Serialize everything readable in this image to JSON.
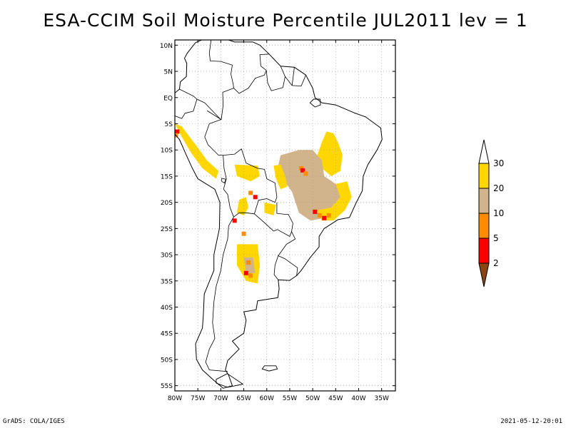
{
  "title": "ESA-CCIM Soil Moisture Percentile JUL2011 lev = 1",
  "footer": {
    "left": "GrADS: COLA/IGES",
    "right": "2021-05-12-20:01"
  },
  "map": {
    "region": "South America",
    "projection": "lat-lon",
    "lon_range": [
      -80,
      -32
    ],
    "lat_range": [
      -56,
      11
    ],
    "grid_lines": "dotted",
    "lat_ticks": [
      {
        "value": 10,
        "label": "10N"
      },
      {
        "value": 5,
        "label": "5N"
      },
      {
        "value": 0,
        "label": "EQ"
      },
      {
        "value": -5,
        "label": "5S"
      },
      {
        "value": -10,
        "label": "10S"
      },
      {
        "value": -15,
        "label": "15S"
      },
      {
        "value": -20,
        "label": "20S"
      },
      {
        "value": -25,
        "label": "25S"
      },
      {
        "value": -30,
        "label": "30S"
      },
      {
        "value": -35,
        "label": "35S"
      },
      {
        "value": -40,
        "label": "40S"
      },
      {
        "value": -45,
        "label": "45S"
      },
      {
        "value": -50,
        "label": "50S"
      },
      {
        "value": -55,
        "label": "55S"
      }
    ],
    "lon_ticks": [
      {
        "value": -80,
        "label": "80W"
      },
      {
        "value": -75,
        "label": "75W"
      },
      {
        "value": -70,
        "label": "70W"
      },
      {
        "value": -65,
        "label": "65W"
      },
      {
        "value": -60,
        "label": "60W"
      },
      {
        "value": -55,
        "label": "55W"
      },
      {
        "value": -50,
        "label": "50W"
      },
      {
        "value": -45,
        "label": "45W"
      },
      {
        "value": -40,
        "label": "40W"
      },
      {
        "value": -35,
        "label": "35W"
      }
    ],
    "colors": {
      "lt2": "#8b4513",
      "2to5": "#ff0000",
      "5to10": "#ff8c00",
      "10to20": "#d2b48c",
      "20to30": "#ffd700",
      "gt30": "#ffffff"
    },
    "regions": [
      {
        "name": "ne-brazil-dry",
        "class": "20to30",
        "points": [
          [
            -47,
            -6.5
          ],
          [
            -45.5,
            -6.8
          ],
          [
            -44.5,
            -8.5
          ],
          [
            -43.5,
            -11
          ],
          [
            -44,
            -14
          ],
          [
            -46,
            -15
          ],
          [
            -48,
            -13.5
          ],
          [
            -49,
            -11
          ],
          [
            -48,
            -8.5
          ]
        ]
      },
      {
        "name": "central-brazil-dry",
        "class": "10to20",
        "points": [
          [
            -57,
            -11
          ],
          [
            -53,
            -10
          ],
          [
            -50,
            -10
          ],
          [
            -48,
            -12
          ],
          [
            -47.5,
            -15
          ],
          [
            -45,
            -16.5
          ],
          [
            -43.5,
            -18.5
          ],
          [
            -45,
            -21.5
          ],
          [
            -47.5,
            -23
          ],
          [
            -50.5,
            -23.5
          ],
          [
            -53,
            -22
          ],
          [
            -54.5,
            -18
          ],
          [
            -56.5,
            -15.5
          ],
          [
            -57.5,
            -13
          ]
        ]
      },
      {
        "name": "se-brazil-dry",
        "class": "20to30",
        "points": [
          [
            -45,
            -16.5
          ],
          [
            -42.5,
            -16
          ],
          [
            -41.5,
            -19
          ],
          [
            -43,
            -21.5
          ],
          [
            -45.5,
            -23.5
          ],
          [
            -48,
            -23.5
          ],
          [
            -49,
            -21.5
          ],
          [
            -46,
            -21
          ],
          [
            -44,
            -19
          ]
        ]
      },
      {
        "name": "mato-grosso-edge",
        "class": "20to30",
        "points": [
          [
            -58.5,
            -13
          ],
          [
            -57,
            -12.8
          ],
          [
            -56,
            -15
          ],
          [
            -55.5,
            -17
          ],
          [
            -57,
            -17.5
          ],
          [
            -58,
            -15.5
          ]
        ]
      },
      {
        "name": "bolivia-dry",
        "class": "20to30",
        "points": [
          [
            -67,
            -12.8
          ],
          [
            -62,
            -13
          ],
          [
            -61.5,
            -15
          ],
          [
            -63.5,
            -16
          ],
          [
            -66.5,
            -15
          ]
        ]
      },
      {
        "name": "peru-coast-dry",
        "class": "20to30",
        "points": [
          [
            -80,
            -5
          ],
          [
            -78.5,
            -7.5
          ],
          [
            -76.5,
            -10.5
          ],
          [
            -74,
            -13.5
          ],
          [
            -71,
            -15.5
          ],
          [
            -70.5,
            -14
          ],
          [
            -73,
            -12
          ],
          [
            -75.5,
            -9
          ],
          [
            -78.5,
            -5.5
          ]
        ]
      },
      {
        "name": "chaco-dry",
        "class": "20to30",
        "points": [
          [
            -66,
            -19.5
          ],
          [
            -64.5,
            -19
          ],
          [
            -64,
            -21
          ],
          [
            -65,
            -22.5
          ],
          [
            -66.5,
            -22
          ]
        ]
      },
      {
        "name": "cordoba-dry",
        "class": "20to30",
        "points": [
          [
            -66.5,
            -28
          ],
          [
            -62,
            -28
          ],
          [
            -61.5,
            -32
          ],
          [
            -62,
            -35.5
          ],
          [
            -64.5,
            -35
          ],
          [
            -66.5,
            -32
          ]
        ]
      },
      {
        "name": "cordoba-core",
        "class": "10to20",
        "points": [
          [
            -65,
            -30.5
          ],
          [
            -63,
            -30.5
          ],
          [
            -62.5,
            -33.5
          ],
          [
            -64.5,
            -33.5
          ]
        ]
      },
      {
        "name": "paraguay-dry",
        "class": "20to30",
        "points": [
          [
            -60.5,
            -20
          ],
          [
            -58,
            -20.5
          ],
          [
            -58.5,
            -22.5
          ],
          [
            -60.5,
            -22
          ]
        ]
      }
    ],
    "hotspots": [
      {
        "class": "5to10",
        "lon": -52.5,
        "lat": -13.5
      },
      {
        "class": "2to5",
        "lon": -52.2,
        "lat": -13.9
      },
      {
        "class": "5to10",
        "lon": -51.5,
        "lat": -14.5
      },
      {
        "class": "2to5",
        "lon": -49.5,
        "lat": -21.8
      },
      {
        "class": "5to10",
        "lon": -48.5,
        "lat": -22.5
      },
      {
        "class": "2to5",
        "lon": -47.5,
        "lat": -23
      },
      {
        "class": "5to10",
        "lon": -46.5,
        "lat": -22.5
      },
      {
        "class": "2to5",
        "lon": -62.5,
        "lat": -19
      },
      {
        "class": "5to10",
        "lon": -63.5,
        "lat": -18.2
      },
      {
        "class": "2to5",
        "lon": -79.5,
        "lat": -6.5
      },
      {
        "class": "5to10",
        "lon": -79.8,
        "lat": -7.2
      },
      {
        "class": "5to10",
        "lon": -64,
        "lat": -31.5
      },
      {
        "class": "2to5",
        "lon": -64.5,
        "lat": -33.5
      },
      {
        "class": "5to10",
        "lon": -63.5,
        "lat": -34
      },
      {
        "class": "2to5",
        "lon": -67,
        "lat": -23.5
      },
      {
        "class": "5to10",
        "lon": -65,
        "lat": -26
      }
    ],
    "coastline": [
      [
        -77.3,
        8.5
      ],
      [
        -75.5,
        10.5
      ],
      [
        -72,
        11.8
      ],
      [
        -70,
        11.5
      ],
      [
        -67,
        10.6
      ],
      [
        -63,
        10.6
      ],
      [
        -61.5,
        10
      ],
      [
        -59.5,
        8.3
      ],
      [
        -57,
        6
      ],
      [
        -54,
        5.8
      ],
      [
        -51.5,
        4.3
      ],
      [
        -50,
        1.8
      ],
      [
        -49.5,
        0
      ],
      [
        -48,
        -1
      ],
      [
        -45,
        -1.4
      ],
      [
        -41,
        -2.9
      ],
      [
        -38.5,
        -3.7
      ],
      [
        -35.2,
        -5.8
      ],
      [
        -34.9,
        -8
      ],
      [
        -36,
        -10
      ],
      [
        -38,
        -12.8
      ],
      [
        -39,
        -15
      ],
      [
        -39.2,
        -17.8
      ],
      [
        -40.5,
        -20
      ],
      [
        -42,
        -22.9
      ],
      [
        -44.5,
        -23.3
      ],
      [
        -47.5,
        -25
      ],
      [
        -48.6,
        -26.5
      ],
      [
        -48.6,
        -28.5
      ],
      [
        -50.5,
        -30.5
      ],
      [
        -52.5,
        -33
      ],
      [
        -53.5,
        -34
      ],
      [
        -55,
        -34.9
      ],
      [
        -57.5,
        -34.8
      ],
      [
        -57.3,
        -36.5
      ],
      [
        -57.6,
        -38.2
      ],
      [
        -62,
        -38.8
      ],
      [
        -62.3,
        -40.5
      ],
      [
        -65,
        -40.9
      ],
      [
        -64.5,
        -42.5
      ],
      [
        -65,
        -45
      ],
      [
        -67.5,
        -46.5
      ],
      [
        -66,
        -48
      ],
      [
        -68.5,
        -50.2
      ],
      [
        -69,
        -52
      ],
      [
        -68.3,
        -53
      ],
      [
        -67.5,
        -55
      ],
      [
        -69.5,
        -55.5
      ],
      [
        -71.5,
        -54
      ],
      [
        -74,
        -52
      ],
      [
        -75.3,
        -50
      ],
      [
        -75.5,
        -47
      ],
      [
        -74,
        -44
      ],
      [
        -73.8,
        -41.5
      ],
      [
        -73.6,
        -37.5
      ],
      [
        -71.5,
        -33
      ],
      [
        -71.5,
        -30
      ],
      [
        -70.3,
        -25
      ],
      [
        -70.2,
        -20
      ],
      [
        -71.3,
        -17.5
      ],
      [
        -75,
        -15.5
      ],
      [
        -76.2,
        -13.5
      ],
      [
        -77.5,
        -11
      ],
      [
        -79,
        -8
      ],
      [
        -81,
        -6
      ],
      [
        -81.2,
        -4.2
      ],
      [
        -80,
        -2.5
      ],
      [
        -80.8,
        -1
      ],
      [
        -80.1,
        0.8
      ],
      [
        -79,
        1.6
      ],
      [
        -78.8,
        3
      ],
      [
        -77.5,
        4
      ],
      [
        -77.4,
        6.5
      ],
      [
        -77.9,
        7.5
      ],
      [
        -77.3,
        8.5
      ]
    ],
    "borders": [
      [
        [
          -79,
          1.6
        ],
        [
          -76,
          0.3
        ],
        [
          -75.2,
          -0.3
        ],
        [
          -73.5,
          -1
        ],
        [
          -70,
          -4.2
        ]
      ],
      [
        [
          -80.3,
          -3.4
        ],
        [
          -78.5,
          -4
        ],
        [
          -77.8,
          -3
        ],
        [
          -76,
          -2.6
        ],
        [
          -75.2,
          -0.3
        ]
      ],
      [
        [
          -70,
          -4.2
        ],
        [
          -72.5,
          -5
        ],
        [
          -73.5,
          -7.5
        ],
        [
          -72.8,
          -9
        ],
        [
          -70.5,
          -11
        ],
        [
          -69.5,
          -11
        ],
        [
          -69.3,
          -13.5
        ],
        [
          -68.8,
          -15.5
        ],
        [
          -69.4,
          -17.5
        ]
      ],
      [
        [
          -69.4,
          -17.5
        ],
        [
          -68.5,
          -18.5
        ],
        [
          -68,
          -21
        ],
        [
          -67.2,
          -22.8
        ],
        [
          -68.3,
          -24.5
        ],
        [
          -68.5,
          -27
        ],
        [
          -69.5,
          -30
        ],
        [
          -70,
          -33
        ],
        [
          -71,
          -36
        ],
        [
          -71.5,
          -39
        ],
        [
          -71.8,
          -43
        ],
        [
          -71.3,
          -46
        ],
        [
          -72.5,
          -48
        ],
        [
          -73.3,
          -50.5
        ],
        [
          -72.5,
          -52
        ],
        [
          -68.5,
          -52.3
        ]
      ],
      [
        [
          -69.5,
          -11
        ],
        [
          -67,
          -10.8
        ],
        [
          -65.5,
          -9.8
        ],
        [
          -64.5,
          -12.5
        ],
        [
          -62,
          -13.5
        ],
        [
          -60.5,
          -13.7
        ],
        [
          -60,
          -15.5
        ],
        [
          -58.2,
          -16.3
        ],
        [
          -57.8,
          -19
        ]
      ],
      [
        [
          -57.8,
          -19
        ],
        [
          -58.2,
          -20
        ],
        [
          -60,
          -19.3
        ],
        [
          -61.8,
          -19.6
        ],
        [
          -62.7,
          -22.2
        ],
        [
          -64.5,
          -22
        ],
        [
          -66,
          -22
        ],
        [
          -67.2,
          -22.8
        ]
      ],
      [
        [
          -62.7,
          -22.2
        ],
        [
          -61,
          -23.5
        ],
        [
          -58.5,
          -25.5
        ],
        [
          -57.7,
          -25.2
        ],
        [
          -55,
          -26.5
        ],
        [
          -54.6,
          -25.6
        ],
        [
          -54.3,
          -24
        ],
        [
          -55.3,
          -22.3
        ],
        [
          -56,
          -22.3
        ],
        [
          -57.8,
          -22.1
        ],
        [
          -57.8,
          -20
        ]
      ],
      [
        [
          -54.6,
          -25.6
        ],
        [
          -53.8,
          -27
        ],
        [
          -55.7,
          -28
        ],
        [
          -57.5,
          -30.2
        ],
        [
          -56,
          -30.8
        ],
        [
          -53.3,
          -32.5
        ],
        [
          -53.5,
          -34
        ]
      ],
      [
        [
          -57.5,
          -30.2
        ],
        [
          -58.2,
          -32
        ],
        [
          -58.4,
          -33.8
        ],
        [
          -57.5,
          -34.8
        ]
      ],
      [
        [
          -73,
          -2.5
        ],
        [
          -69.9,
          -4.2
        ],
        [
          -69.5,
          -1.5
        ],
        [
          -69.6,
          1
        ],
        [
          -67.2,
          1.8
        ],
        [
          -66,
          0.8
        ],
        [
          -64,
          1.8
        ],
        [
          -62.5,
          3.7
        ],
        [
          -60.5,
          4.3
        ],
        [
          -60.1,
          5.2
        ],
        [
          -61.3,
          6
        ]
      ],
      [
        [
          -72,
          11.8
        ],
        [
          -72.5,
          8.5
        ],
        [
          -72.3,
          7
        ],
        [
          -70,
          6.9
        ],
        [
          -67.5,
          6.2
        ],
        [
          -67.8,
          4.5
        ],
        [
          -67.3,
          2.5
        ],
        [
          -67.2,
          1.8
        ]
      ],
      [
        [
          -61.3,
          6
        ],
        [
          -61.5,
          8.2
        ],
        [
          -59.5,
          8.3
        ]
      ],
      [
        [
          -60.1,
          5.2
        ],
        [
          -59.8,
          2.8
        ],
        [
          -59,
          1.3
        ],
        [
          -56.5,
          1.9
        ],
        [
          -56,
          4
        ],
        [
          -57,
          6
        ]
      ],
      [
        [
          -56,
          4
        ],
        [
          -54.5,
          2.3
        ],
        [
          -52.5,
          2.2
        ],
        [
          -51.5,
          4.3
        ]
      ],
      [
        [
          -54,
          5.8
        ],
        [
          -54.5,
          2.3
        ]
      ]
    ],
    "islands": [
      [
        [
          -71,
          -53.8
        ],
        [
          -68.6,
          -52.7
        ],
        [
          -65.2,
          -54.7
        ],
        [
          -68.5,
          -55.3
        ],
        [
          -71,
          -54.5
        ]
      ],
      [
        [
          -60.5,
          -51.2
        ],
        [
          -58,
          -51.2
        ],
        [
          -57.7,
          -51.8
        ],
        [
          -59.5,
          -52.2
        ],
        [
          -61,
          -51.8
        ]
      ],
      [
        [
          -49.8,
          -0.3
        ],
        [
          -48.4,
          -0.3
        ],
        [
          -48.3,
          -1.4
        ],
        [
          -49.5,
          -1.8
        ],
        [
          -50.6,
          -1
        ]
      ]
    ],
    "lakes": [
      [
        [
          -69.8,
          -15.4
        ],
        [
          -68.9,
          -15.6
        ],
        [
          -69.2,
          -16.3
        ],
        [
          -69.8,
          -16
        ]
      ]
    ]
  },
  "legend": {
    "top_label": "30",
    "bottom_label": "2",
    "boxes": [
      {
        "color": "#ffd700",
        "label": "20"
      },
      {
        "color": "#d2b48c",
        "label": "10"
      },
      {
        "color": "#ff8c00",
        "label": "5"
      },
      {
        "color": "#ff0000",
        "label": ""
      }
    ],
    "top_triangle_color": "#ffffff",
    "bottom_triangle_color": "#8b4513"
  }
}
